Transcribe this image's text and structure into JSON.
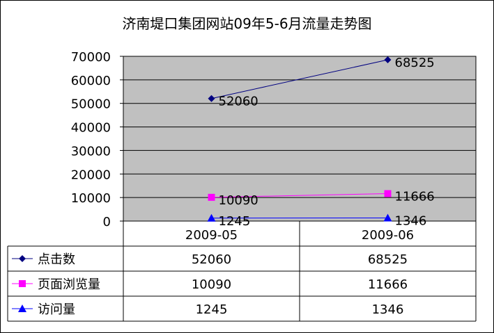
{
  "chart_data": {
    "type": "line",
    "title": "济南堤口集团网站09年5-6月流量走势图",
    "categories": [
      "2009-05",
      "2009-06"
    ],
    "ylim": [
      0,
      70000
    ],
    "yticks": [
      0,
      10000,
      20000,
      30000,
      40000,
      50000,
      60000,
      70000
    ],
    "grid": true,
    "legend": "data-table",
    "series": [
      {
        "name": "点击数",
        "values": [
          52060,
          68525
        ],
        "color": "#000080",
        "marker": "diamond"
      },
      {
        "name": "页面浏览量",
        "values": [
          10090,
          11666
        ],
        "color": "#ff00ff",
        "marker": "square"
      },
      {
        "name": "访问量",
        "values": [
          1245,
          1346
        ],
        "color": "#0000ff",
        "marker": "triangle"
      }
    ]
  }
}
